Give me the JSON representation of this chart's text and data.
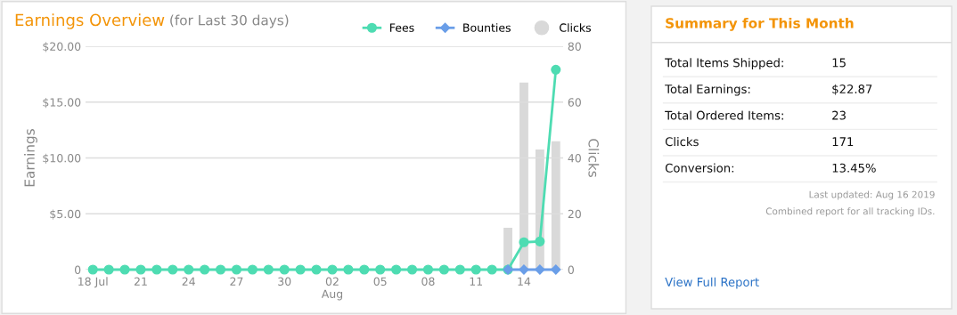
{
  "chart_data": [
    {
      "type": "line",
      "title": "Earnings Overview",
      "subtitle": "(for Last 30 days)",
      "ylabel": "Earnings",
      "y2label": "Clicks",
      "x": [
        "2019-07-18",
        "2019-07-19",
        "2019-07-20",
        "2019-07-21",
        "2019-07-22",
        "2019-07-23",
        "2019-07-24",
        "2019-07-25",
        "2019-07-26",
        "2019-07-27",
        "2019-07-28",
        "2019-07-29",
        "2019-07-30",
        "2019-07-31",
        "2019-08-01",
        "2019-08-02",
        "2019-08-03",
        "2019-08-04",
        "2019-08-05",
        "2019-08-06",
        "2019-08-07",
        "2019-08-08",
        "2019-08-09",
        "2019-08-10",
        "2019-08-11",
        "2019-08-12",
        "2019-08-13",
        "2019-08-14",
        "2019-08-15",
        "2019-08-16"
      ],
      "series": [
        {
          "name": "Fees",
          "color": "#4edcb2",
          "marker": "circle",
          "values": [
            0,
            0,
            0,
            0,
            0,
            0,
            0,
            0,
            0,
            0,
            0,
            0,
            0,
            0,
            0,
            0,
            0,
            0,
            0,
            0,
            0,
            0,
            0,
            0,
            0,
            0,
            0,
            2.45,
            2.52,
            17.9
          ]
        },
        {
          "name": "Bounties",
          "color": "#6a9ee8",
          "marker": "diamond",
          "values": [
            null,
            null,
            null,
            null,
            null,
            null,
            null,
            null,
            null,
            null,
            null,
            null,
            null,
            null,
            null,
            null,
            null,
            null,
            null,
            null,
            null,
            null,
            null,
            null,
            null,
            null,
            0,
            0,
            0,
            0
          ]
        },
        {
          "name": "Clicks",
          "color": "#d9d9d9",
          "type": "bar",
          "axis": "y2",
          "values": [
            null,
            null,
            null,
            null,
            null,
            null,
            null,
            null,
            null,
            null,
            null,
            null,
            null,
            null,
            null,
            null,
            null,
            null,
            null,
            null,
            null,
            null,
            null,
            null,
            null,
            null,
            15,
            67,
            43,
            46
          ]
        }
      ],
      "xlim": [
        "2019-07-17T13:00",
        "2019-08-16T11:00"
      ],
      "xticks": [
        {
          "value": "2019-07-18",
          "label": "18 Jul"
        },
        {
          "value": "2019-07-21",
          "label": "21"
        },
        {
          "value": "2019-07-24",
          "label": "24"
        },
        {
          "value": "2019-07-27",
          "label": "27"
        },
        {
          "value": "2019-07-30",
          "label": "30"
        },
        {
          "value": "2019-08-02",
          "label": "02\nAug"
        },
        {
          "value": "2019-08-05",
          "label": "05"
        },
        {
          "value": "2019-08-08",
          "label": "08"
        },
        {
          "value": "2019-08-11",
          "label": "11"
        },
        {
          "value": "2019-08-14",
          "label": "14"
        }
      ],
      "ylim": [
        0,
        20
      ],
      "yticks": [
        0,
        {
          "value": 5,
          "label": "$5.00"
        },
        {
          "value": 10,
          "label": "$10.00"
        },
        {
          "value": 15,
          "label": "$15.00"
        },
        {
          "value": 20,
          "label": "$20.00"
        }
      ],
      "y2lim": [
        0,
        80
      ],
      "y2ticks": [
        0,
        20,
        40,
        60,
        80
      ],
      "grid": "y",
      "legend": "top right"
    },
    {
      "type": "other",
      "title": "Summary for This Month",
      "annotations": [
        "Total Items Shipped:",
        "15",
        "Total Earnings:",
        "$22.87",
        "Total Ordered Items:",
        "23",
        "Clicks",
        "171",
        "Conversion:",
        "13.45%",
        "Last updated: Aug 16 2019",
        "Combined report for all tracking IDs.",
        "View Full Report"
      ]
    }
  ]
}
